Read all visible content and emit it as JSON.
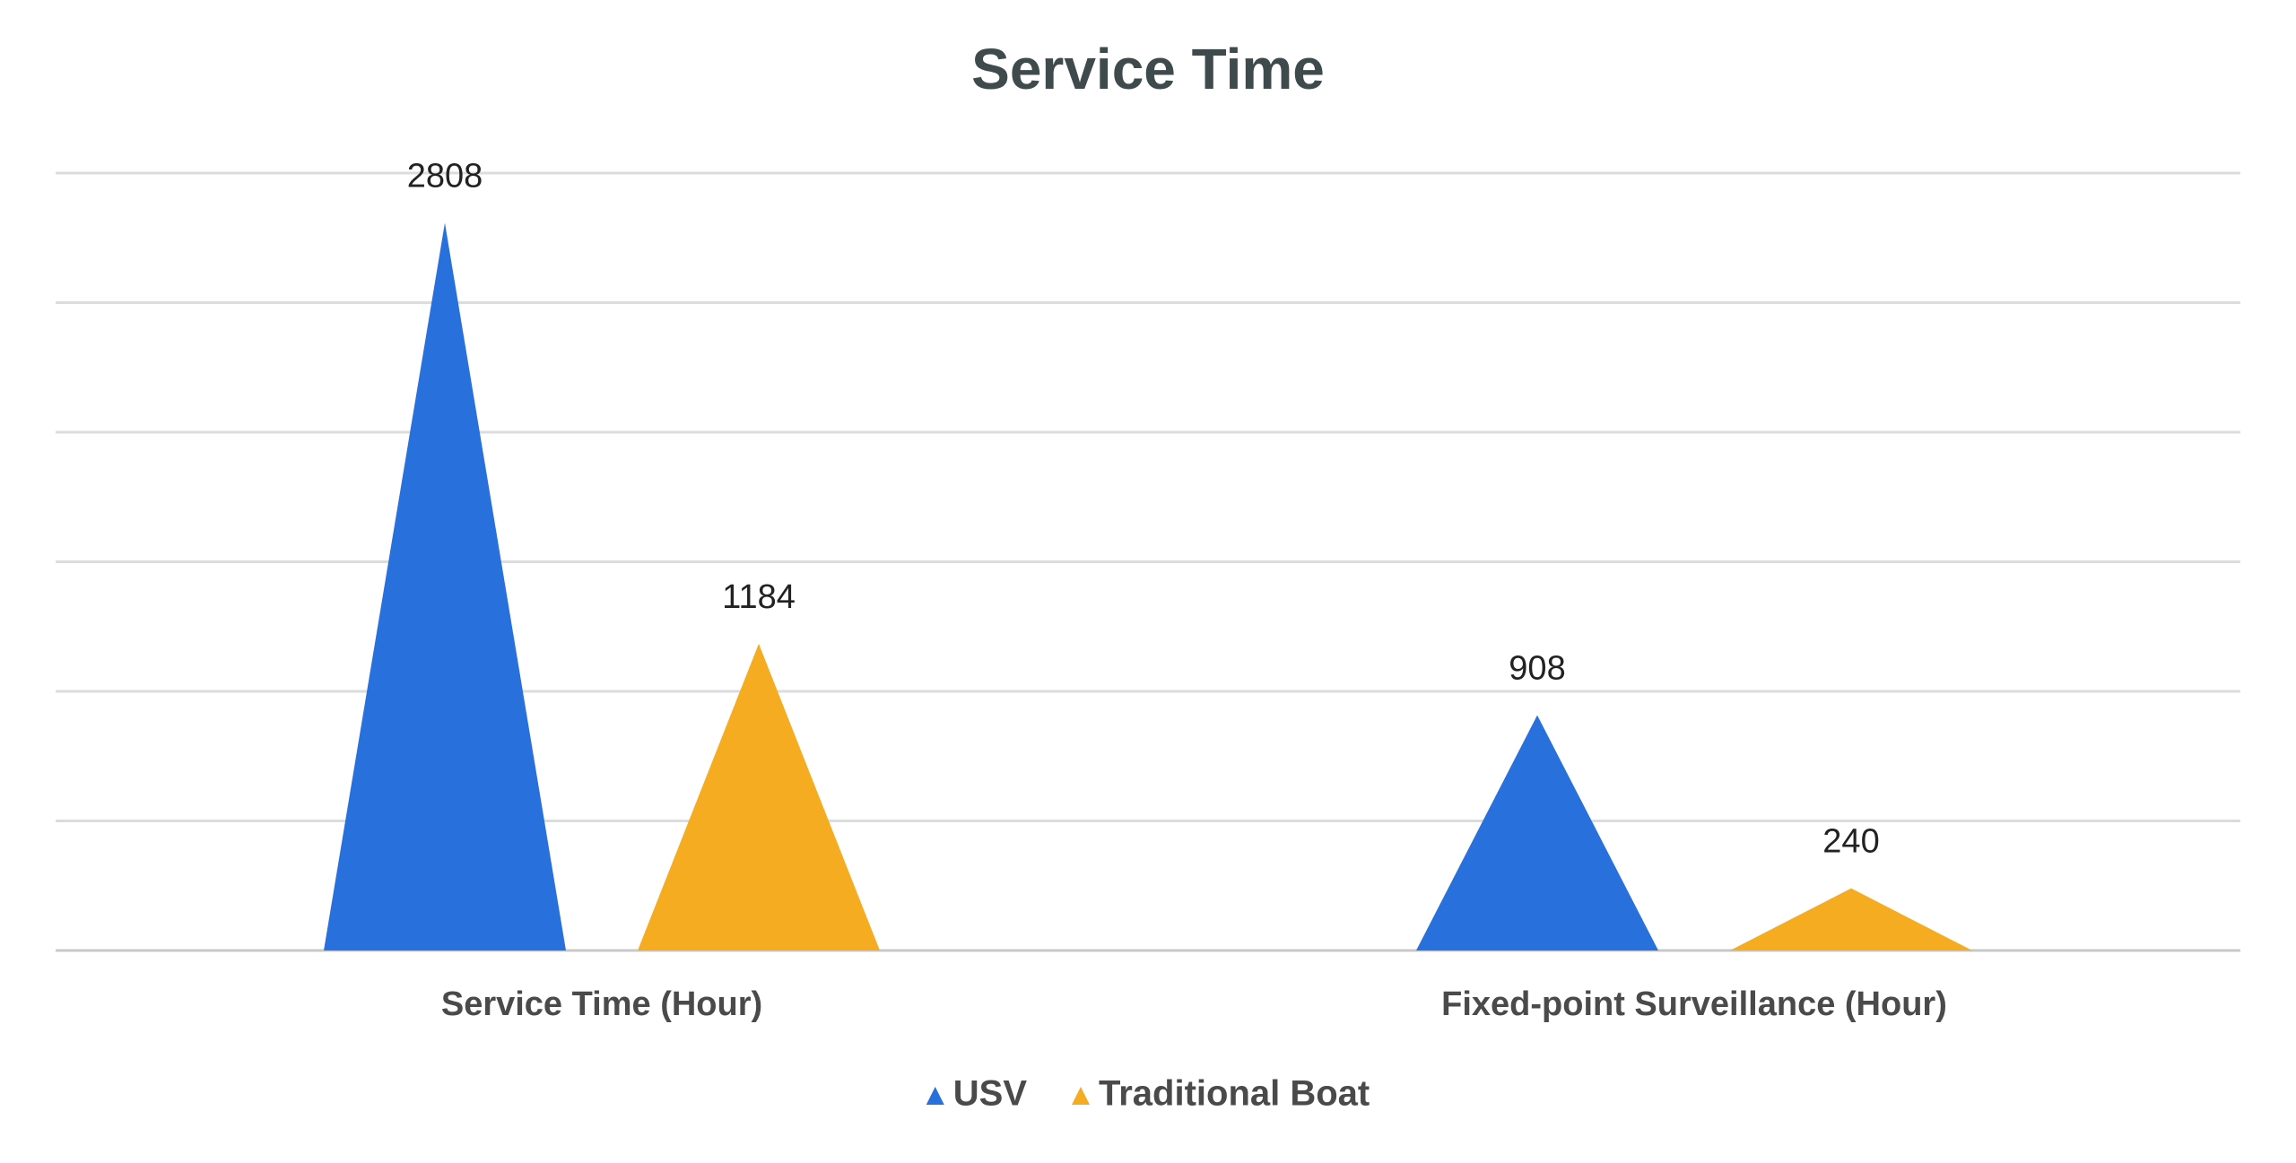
{
  "chart_data": {
    "type": "triangle-bar",
    "title": "Service Time",
    "categories": [
      "Service Time (Hour)",
      "Fixed-point Surveillance (Hour)"
    ],
    "series": [
      {
        "name": "USV",
        "color": "#2870dc",
        "values": [
          2808,
          908
        ]
      },
      {
        "name": "Traditional Boat",
        "color": "#f5ac20",
        "values": [
          1184,
          240
        ]
      }
    ],
    "ylim": [
      0,
      3000
    ],
    "yticks": [
      0,
      500,
      1000,
      1500,
      2000,
      2500,
      3000
    ],
    "grid": true,
    "legend": "bottom"
  }
}
